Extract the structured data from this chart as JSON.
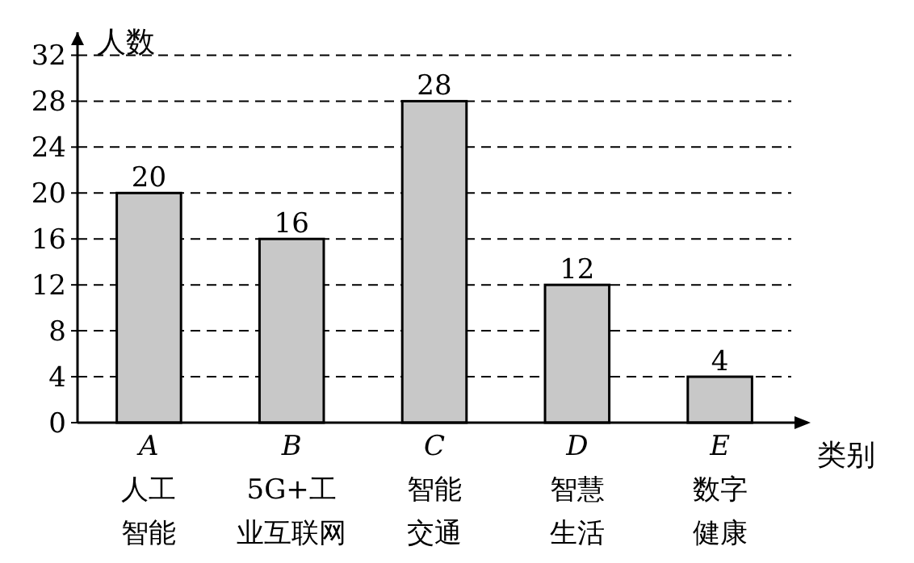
{
  "chart_data": {
    "type": "bar",
    "xlabel": "类别",
    "ylabel": "人数",
    "categories": [
      "A\n人工智能",
      "B\n5G+工业互联网",
      "C\n智能交通",
      "D\n智慧生活",
      "E\n数字健康"
    ],
    "values": [
      20,
      16,
      28,
      12,
      4
    ],
    "color": "#c8c8c8",
    "ylim": [
      0,
      34
    ],
    "yticks": [
      0,
      4,
      8,
      12,
      16,
      20,
      24,
      28,
      32
    ],
    "grid": "y",
    "data_labels": true
  }
}
